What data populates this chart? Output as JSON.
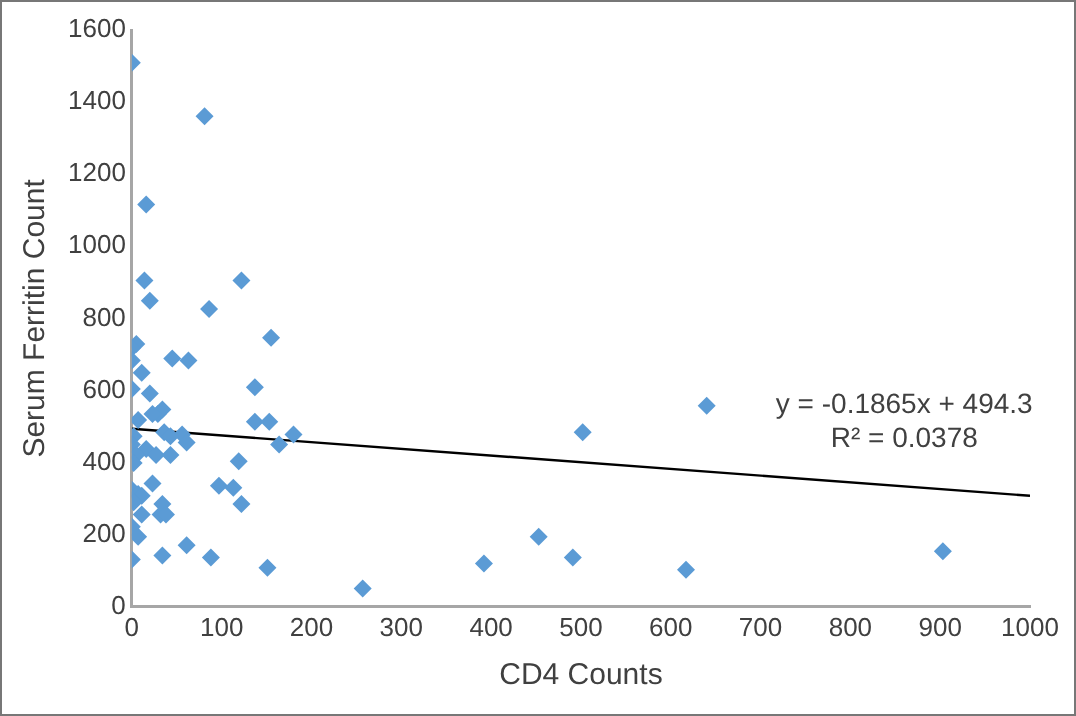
{
  "chart_data": {
    "type": "scatter",
    "xlabel": "CD4 Counts",
    "ylabel": "Serum Ferritin Count",
    "xlim": [
      0,
      1000
    ],
    "xticks": [
      0,
      100,
      200,
      300,
      400,
      500,
      600,
      700,
      800,
      900,
      1000
    ],
    "ylim": [
      0,
      1600
    ],
    "yticks": [
      0,
      200,
      400,
      600,
      800,
      1000,
      1200,
      1400,
      1600
    ],
    "grid": false,
    "legend": false,
    "marker": "diamond",
    "series": [
      {
        "color": "#5b9bd5",
        "x": [
          0,
          81,
          16,
          14,
          122,
          20,
          86,
          155,
          5,
          0,
          0,
          45,
          63,
          11,
          0,
          20,
          137,
          7,
          29,
          34,
          23,
          137,
          153,
          36,
          56,
          61,
          43,
          2,
          0,
          16,
          5,
          2,
          27,
          43,
          119,
          164,
          180,
          640,
          502,
          23,
          97,
          113,
          0,
          7,
          11,
          122,
          34,
          32,
          38,
          11,
          2,
          0,
          7,
          61,
          0,
          34,
          88,
          151,
          257,
          392,
          453,
          491,
          617,
          903
        ],
        "values": [
          1509,
          1361,
          1116,
          905,
          905,
          849,
          826,
          746,
          729,
          718,
          683,
          689,
          683,
          649,
          604,
          592,
          609,
          518,
          535,
          547,
          535,
          513,
          513,
          484,
          478,
          456,
          473,
          473,
          450,
          438,
          421,
          399,
          421,
          421,
          404,
          450,
          478,
          558,
          484,
          342,
          336,
          330,
          325,
          313,
          308,
          285,
          285,
          256,
          256,
          256,
          290,
          222,
          194,
          171,
          131,
          142,
          137,
          108,
          51,
          120,
          194,
          137,
          103,
          154
        ]
      },
      {
        "type": "line",
        "color": "#000000",
        "x": [
          0,
          1000
        ],
        "values": [
          494,
          308
        ],
        "marker": "none"
      }
    ],
    "annotations": [
      "y = -0.1865x + 494.3",
      "R² = 0.0378"
    ]
  }
}
